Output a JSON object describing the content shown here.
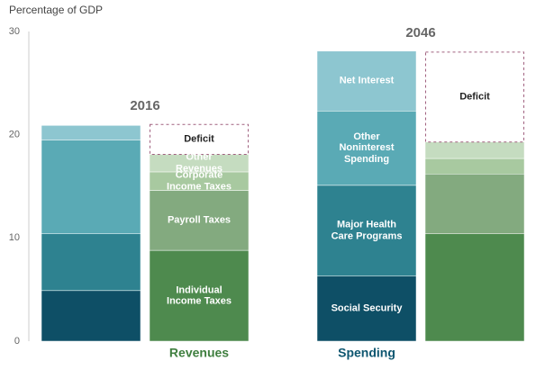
{
  "chart_data": {
    "type": "stacked_bar",
    "y_label": "Percentage of GDP",
    "ylim": [
      0,
      30
    ],
    "yticks": [
      0,
      10,
      20,
      30
    ],
    "groups": [
      "2016",
      "2046"
    ],
    "stacks": [
      {
        "name": "Spending",
        "color": "#0e5670",
        "label_at": 1,
        "series": [
          {
            "name": "Social Security",
            "color": "#0e4f66",
            "values": [
              4.9,
              6.3
            ]
          },
          {
            "name": "Major Health Care Programs",
            "color": "#2e8290",
            "values": [
              5.5,
              8.8
            ]
          },
          {
            "name": "Other Noninterest Spending",
            "color": "#5aaab5",
            "values": [
              9.1,
              7.2
            ]
          },
          {
            "name": "Net Interest",
            "color": "#8dc6d0",
            "values": [
              1.4,
              5.8
            ]
          }
        ]
      },
      {
        "name": "Revenues",
        "color": "#3f7f3f",
        "label_at": 0,
        "series": [
          {
            "name": "Individual Income Taxes",
            "color": "#4e8a4e",
            "values": [
              8.8,
              10.4
            ]
          },
          {
            "name": "Payroll Taxes",
            "color": "#83aa7f",
            "values": [
              5.8,
              5.8
            ]
          },
          {
            "name": "Corporate Income Taxes",
            "color": "#a8c9a0",
            "values": [
              1.8,
              1.5
            ]
          },
          {
            "name": "Other Revenues",
            "color": "#c5dcc0",
            "values": [
              1.7,
              1.6
            ]
          },
          {
            "name": "Deficit",
            "color": "#ffffff",
            "dashed": true,
            "values": [
              2.9,
              8.7
            ]
          }
        ]
      }
    ]
  }
}
